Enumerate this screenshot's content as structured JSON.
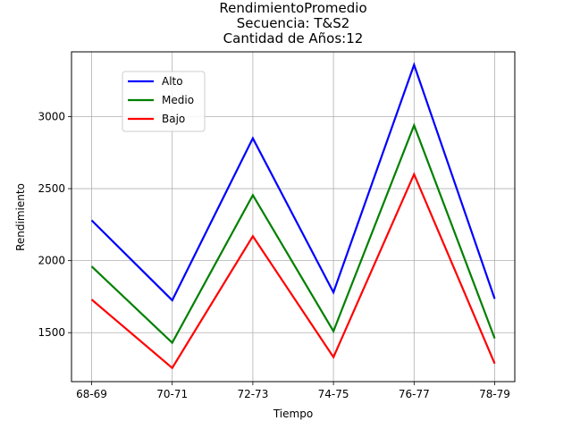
{
  "chart_data": {
    "type": "line",
    "title_lines": [
      "RendimientoPromedio",
      "Secuencia: T&S2",
      "Cantidad de Años:12"
    ],
    "xlabel": "Tiempo",
    "ylabel": "Rendimiento",
    "categories": [
      "68-69",
      "70-71",
      "72-73",
      "74-75",
      "76-77",
      "78-79"
    ],
    "yticks": [
      1500,
      2000,
      2500,
      3000
    ],
    "ylim": [
      1160,
      3450
    ],
    "grid": true,
    "legend_position": "upper-left",
    "series": [
      {
        "name": "Alto",
        "color": "#0000ff",
        "values": [
          2280,
          1725,
          2850,
          1780,
          3360,
          1735
        ]
      },
      {
        "name": "Medio",
        "color": "#008000",
        "values": [
          1960,
          1430,
          2455,
          1510,
          2940,
          1460
        ]
      },
      {
        "name": "Bajo",
        "color": "#ff0000",
        "values": [
          1730,
          1255,
          2170,
          1330,
          2600,
          1285
        ]
      }
    ]
  }
}
